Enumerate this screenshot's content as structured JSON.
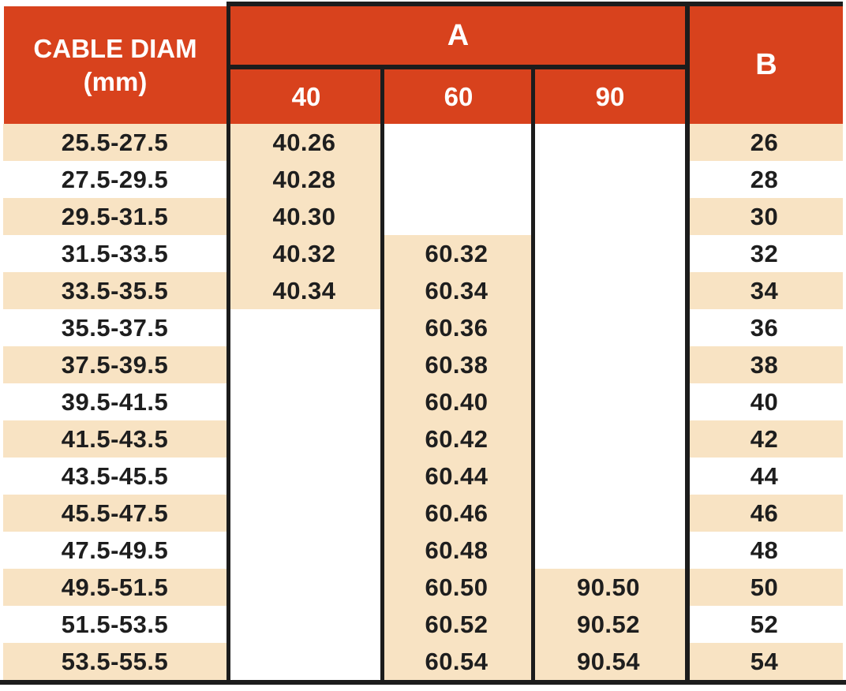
{
  "colors": {
    "header_red": "#d8421d",
    "header_text": "#ffffff",
    "row_cream": "#f8e3c3",
    "row_white": "#ffffff",
    "line_black": "#1c1c1c",
    "text_dark": "#1e1e1e"
  },
  "chart_data": {
    "type": "table",
    "columns": {
      "cable_diam_line1": "CABLE DIAM",
      "cable_diam_line2": "(mm)",
      "group_a_label": "A",
      "a_subcolumns": [
        "40",
        "60",
        "90"
      ],
      "b_label": "B"
    },
    "rows": [
      {
        "cable_diam": "25.5-27.5",
        "a40": "40.26",
        "a60": "",
        "a90": "",
        "b": "26"
      },
      {
        "cable_diam": "27.5-29.5",
        "a40": "40.28",
        "a60": "",
        "a90": "",
        "b": "28"
      },
      {
        "cable_diam": "29.5-31.5",
        "a40": "40.30",
        "a60": "",
        "a90": "",
        "b": "30"
      },
      {
        "cable_diam": "31.5-33.5",
        "a40": "40.32",
        "a60": "60.32",
        "a90": "",
        "b": "32"
      },
      {
        "cable_diam": "33.5-35.5",
        "a40": "40.34",
        "a60": "60.34",
        "a90": "",
        "b": "34"
      },
      {
        "cable_diam": "35.5-37.5",
        "a40": "",
        "a60": "60.36",
        "a90": "",
        "b": "36"
      },
      {
        "cable_diam": "37.5-39.5",
        "a40": "",
        "a60": "60.38",
        "a90": "",
        "b": "38"
      },
      {
        "cable_diam": "39.5-41.5",
        "a40": "",
        "a60": "60.40",
        "a90": "",
        "b": "40"
      },
      {
        "cable_diam": "41.5-43.5",
        "a40": "",
        "a60": "60.42",
        "a90": "",
        "b": "42"
      },
      {
        "cable_diam": "43.5-45.5",
        "a40": "",
        "a60": "60.44",
        "a90": "",
        "b": "44"
      },
      {
        "cable_diam": "45.5-47.5",
        "a40": "",
        "a60": "60.46",
        "a90": "",
        "b": "46"
      },
      {
        "cable_diam": "47.5-49.5",
        "a40": "",
        "a60": "60.48",
        "a90": "",
        "b": "48"
      },
      {
        "cable_diam": "49.5-51.5",
        "a40": "",
        "a60": "60.50",
        "a90": "90.50",
        "b": "50"
      },
      {
        "cable_diam": "51.5-53.5",
        "a40": "",
        "a60": "60.52",
        "a90": "90.52",
        "b": "52"
      },
      {
        "cable_diam": "53.5-55.5",
        "a40": "",
        "a60": "60.54",
        "a90": "90.54",
        "b": "54"
      }
    ]
  }
}
